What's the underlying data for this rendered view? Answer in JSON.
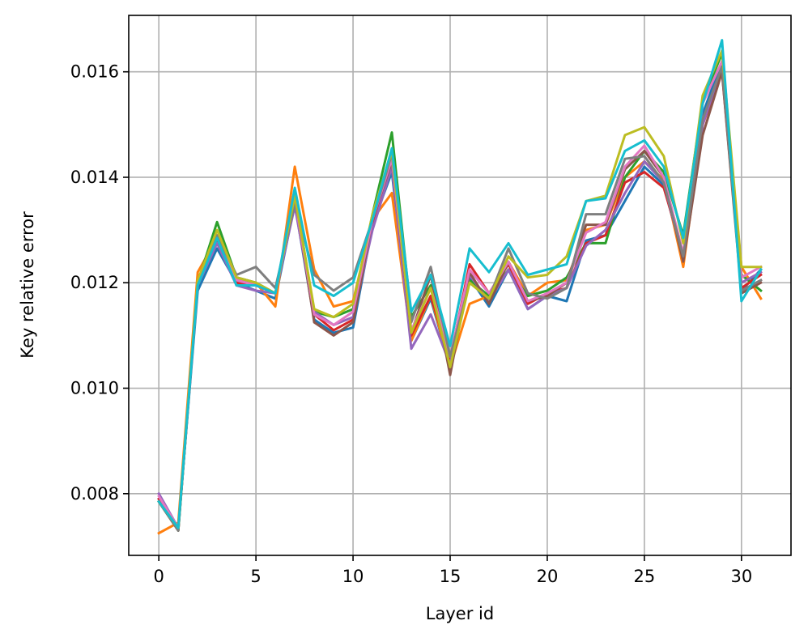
{
  "chart_data": {
    "type": "line",
    "title": "",
    "xlabel": "Layer id",
    "ylabel": "Key relative error",
    "xlim": [
      -1.55,
      32.55
    ],
    "ylim": [
      0.00683,
      0.01707
    ],
    "xticks": [
      0,
      5,
      10,
      15,
      20,
      25,
      30
    ],
    "yticks": [
      0.008,
      0.01,
      0.012,
      0.014,
      0.016
    ],
    "xtick_labels": [
      "0",
      "5",
      "10",
      "15",
      "20",
      "25",
      "30"
    ],
    "ytick_labels": [
      "0.008",
      "0.010",
      "0.012",
      "0.014",
      "0.016"
    ],
    "grid": true,
    "x": [
      0,
      1,
      2,
      3,
      4,
      5,
      6,
      7,
      8,
      9,
      10,
      11,
      12,
      13,
      14,
      15,
      16,
      17,
      18,
      19,
      20,
      21,
      22,
      23,
      24,
      25,
      26,
      27,
      28,
      29,
      30,
      31
    ],
    "series": [
      {
        "color": "#1f77b4",
        "values": [
          0.0079,
          0.00735,
          0.01185,
          0.01265,
          0.012,
          0.01185,
          0.0117,
          0.0135,
          0.0113,
          0.01105,
          0.01115,
          0.0131,
          0.0141,
          0.0109,
          0.0117,
          0.0104,
          0.0121,
          0.01155,
          0.01225,
          0.0115,
          0.01175,
          0.01165,
          0.0128,
          0.0129,
          0.01355,
          0.0142,
          0.01385,
          0.01245,
          0.0152,
          0.0162,
          0.01185,
          0.01225
        ]
      },
      {
        "color": "#ff7f0e",
        "values": [
          0.00725,
          0.00745,
          0.0122,
          0.01285,
          0.0121,
          0.012,
          0.01155,
          0.0142,
          0.01225,
          0.01155,
          0.01165,
          0.0132,
          0.0137,
          0.0109,
          0.01175,
          0.0104,
          0.0116,
          0.01175,
          0.0124,
          0.01175,
          0.012,
          0.01205,
          0.013,
          0.0131,
          0.014,
          0.0143,
          0.01395,
          0.0123,
          0.015,
          0.0161,
          0.0123,
          0.0117
        ]
      },
      {
        "color": "#2ca02c",
        "values": [
          0.00785,
          0.0073,
          0.012,
          0.01315,
          0.0121,
          0.012,
          0.0118,
          0.0137,
          0.01145,
          0.01135,
          0.0115,
          0.0133,
          0.01485,
          0.01135,
          0.01195,
          0.0106,
          0.01205,
          0.01175,
          0.01225,
          0.01175,
          0.01185,
          0.0121,
          0.01275,
          0.01275,
          0.014,
          0.0145,
          0.0141,
          0.0129,
          0.01545,
          0.01635,
          0.01215,
          0.01185
        ]
      },
      {
        "color": "#d62728",
        "values": [
          0.0079,
          0.00735,
          0.01195,
          0.0128,
          0.012,
          0.01195,
          0.0118,
          0.01355,
          0.0114,
          0.0111,
          0.0113,
          0.01305,
          0.01425,
          0.011,
          0.01175,
          0.01055,
          0.01235,
          0.0118,
          0.01235,
          0.0116,
          0.0118,
          0.0119,
          0.01275,
          0.0129,
          0.0139,
          0.0141,
          0.0138,
          0.01255,
          0.015,
          0.016,
          0.0119,
          0.01215
        ]
      },
      {
        "color": "#9467bd",
        "values": [
          0.008,
          0.00735,
          0.01195,
          0.01275,
          0.01195,
          0.01185,
          0.0118,
          0.01345,
          0.01145,
          0.0112,
          0.01135,
          0.013,
          0.0142,
          0.01075,
          0.0114,
          0.01045,
          0.01215,
          0.01165,
          0.01225,
          0.0115,
          0.01175,
          0.0119,
          0.0127,
          0.013,
          0.0137,
          0.0143,
          0.0139,
          0.01245,
          0.015,
          0.0161,
          0.012,
          0.0122
        ]
      },
      {
        "color": "#8c564b",
        "values": [
          0.00785,
          0.0073,
          0.012,
          0.01285,
          0.01205,
          0.01195,
          0.0118,
          0.01365,
          0.01125,
          0.011,
          0.01125,
          0.0132,
          0.0143,
          0.01105,
          0.01215,
          0.01025,
          0.0122,
          0.0116,
          0.0124,
          0.01165,
          0.01175,
          0.012,
          0.0131,
          0.0131,
          0.01415,
          0.0145,
          0.014,
          0.0124,
          0.0148,
          0.016,
          0.0118,
          0.012
        ]
      },
      {
        "color": "#e377c2",
        "values": [
          0.00795,
          0.00735,
          0.012,
          0.0129,
          0.01205,
          0.01195,
          0.0118,
          0.0136,
          0.0114,
          0.0112,
          0.01145,
          0.0132,
          0.01435,
          0.0111,
          0.0119,
          0.0106,
          0.01225,
          0.0118,
          0.0124,
          0.01165,
          0.0118,
          0.012,
          0.01295,
          0.01315,
          0.0142,
          0.0146,
          0.014,
          0.01255,
          0.0154,
          0.0162,
          0.0121,
          0.0123
        ]
      },
      {
        "color": "#7f7f7f",
        "values": [
          0.00785,
          0.0073,
          0.012,
          0.0129,
          0.01215,
          0.0123,
          0.0119,
          0.0135,
          0.01215,
          0.01185,
          0.0121,
          0.0132,
          0.01445,
          0.01125,
          0.0123,
          0.0106,
          0.012,
          0.0117,
          0.01265,
          0.0118,
          0.0117,
          0.0119,
          0.0133,
          0.0133,
          0.01435,
          0.0144,
          0.0139,
          0.0125,
          0.0151,
          0.0161,
          0.01185,
          0.01205
        ]
      },
      {
        "color": "#bcbd22",
        "values": [
          0.00785,
          0.00735,
          0.01205,
          0.013,
          0.0121,
          0.012,
          0.0118,
          0.01365,
          0.0115,
          0.01135,
          0.0116,
          0.0133,
          0.0145,
          0.01105,
          0.0119,
          0.0104,
          0.012,
          0.0117,
          0.0125,
          0.0121,
          0.01215,
          0.0125,
          0.01355,
          0.01365,
          0.0148,
          0.01495,
          0.0144,
          0.01275,
          0.01555,
          0.0164,
          0.0123,
          0.0123
        ]
      },
      {
        "color": "#17becf",
        "values": [
          0.00785,
          0.00735,
          0.01195,
          0.01285,
          0.01195,
          0.01195,
          0.0118,
          0.0138,
          0.01195,
          0.01175,
          0.012,
          0.0132,
          0.01455,
          0.01145,
          0.01215,
          0.0108,
          0.01265,
          0.0122,
          0.01275,
          0.01215,
          0.01225,
          0.01235,
          0.01355,
          0.0136,
          0.0145,
          0.0147,
          0.0142,
          0.01285,
          0.0154,
          0.0166,
          0.01165,
          0.01225
        ]
      }
    ]
  }
}
